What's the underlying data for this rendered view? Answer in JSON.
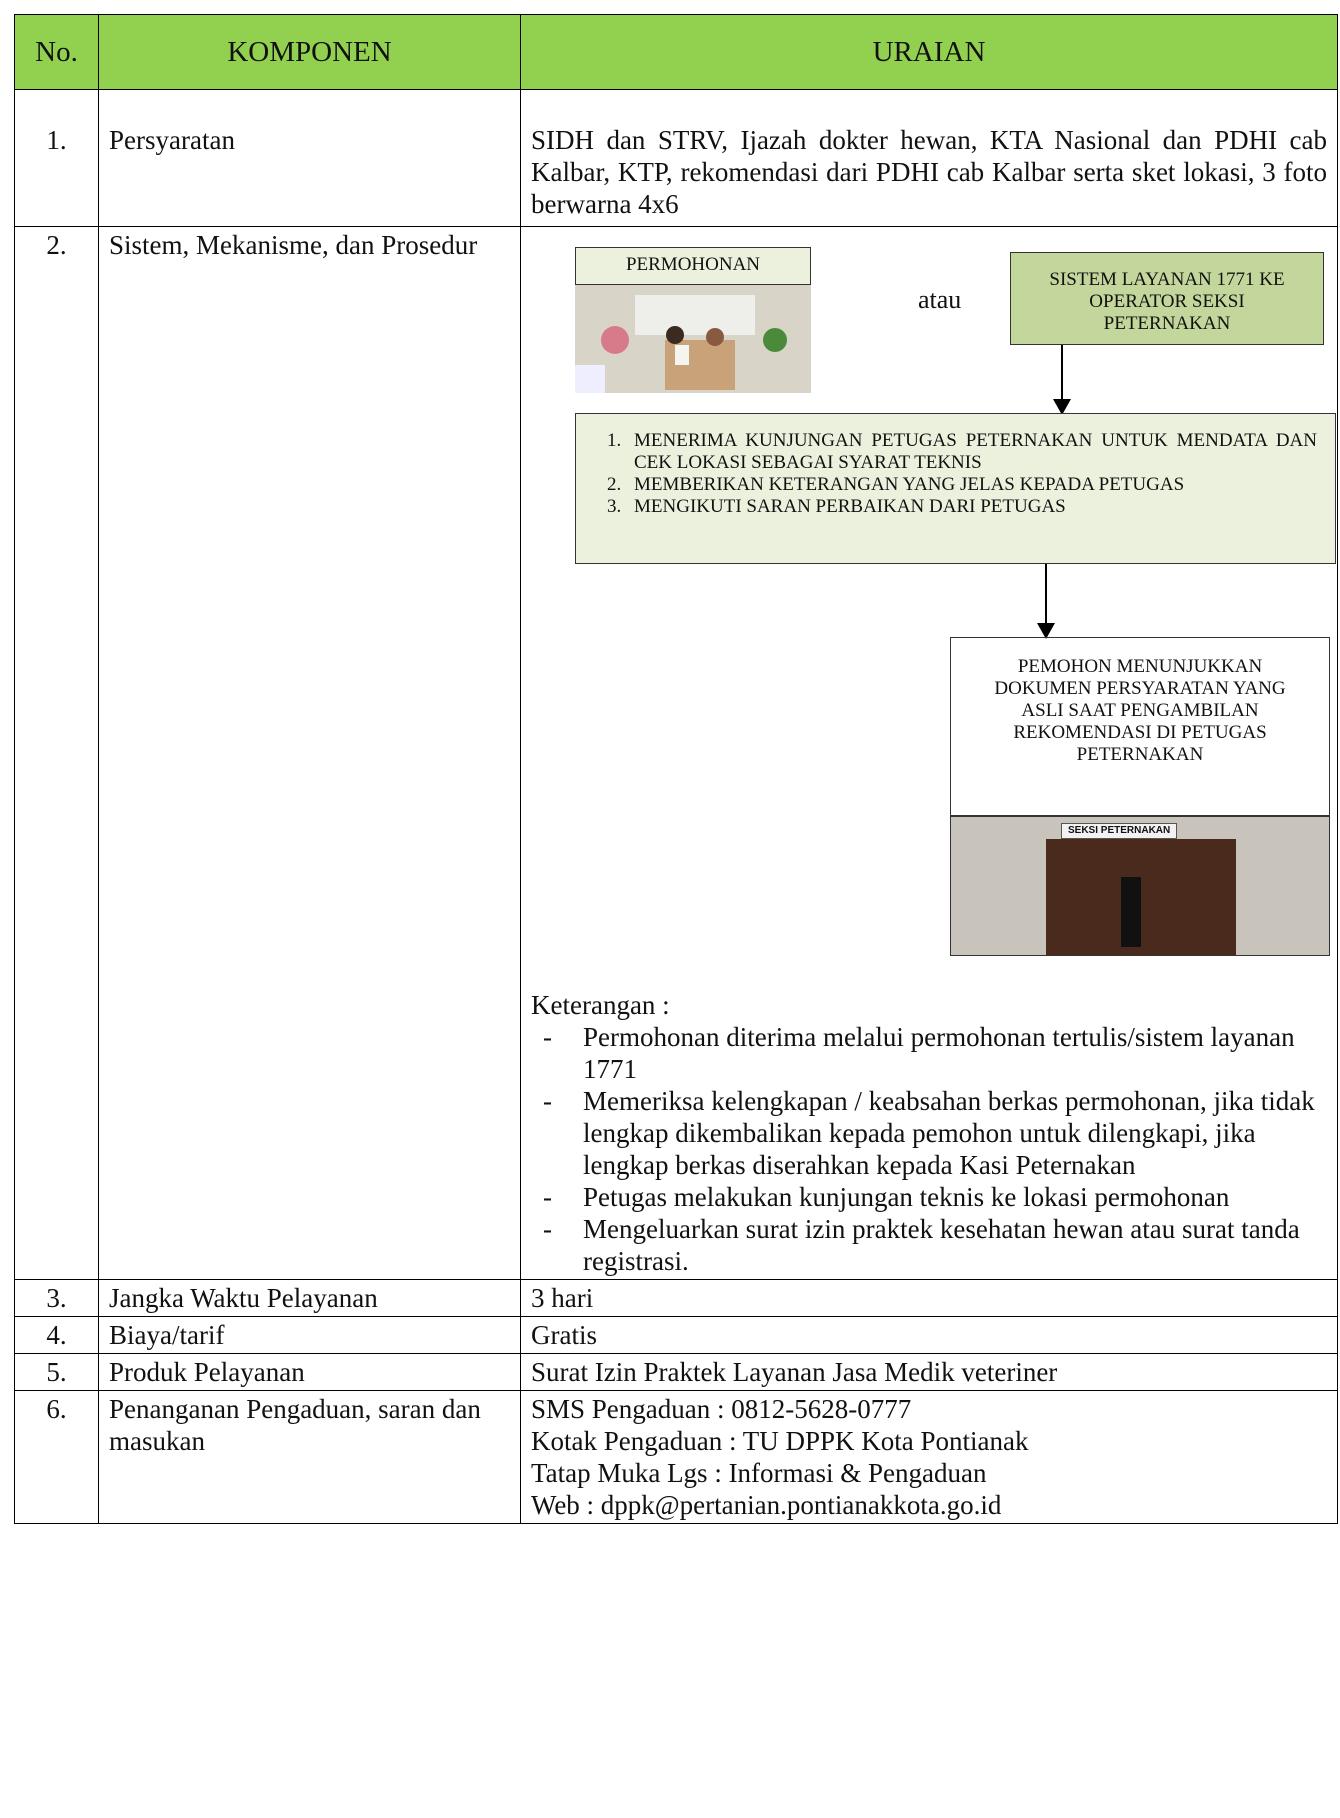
{
  "table": {
    "header": [
      "No.",
      "KOMPONEN",
      "URAIAN"
    ],
    "rows": [
      {
        "no": "1.",
        "komponen": "Persyaratan",
        "uraian": "SIDH dan STRV, Ijazah dokter hewan, KTA Nasional dan PDHI cab Kalbar, KTP, rekomendasi dari PDHI cab Kalbar serta sket lokasi, 3 foto berwarna 4x6"
      },
      {
        "no": "2.",
        "komponen": "Sistem, Mekanisme, dan Prosedur",
        "diagram": {
          "permohonan": "PERMOHONAN",
          "atau": "atau",
          "sistem": "SISTEM LAYANAN 1771 KE OPERATOR SEKSI PETERNAKAN",
          "steps": [
            "MENERIMA KUNJUNGAN PETUGAS PETERNAKAN UNTUK MENDATA DAN CEK LOKASI SEBAGAI SYARAT TEKNIS",
            "MEMBERIKAN KETERANGAN YANG JELAS KEPADA PETUGAS",
            "MENGIKUTI SARAN PERBAIKAN DARI PETUGAS"
          ],
          "pemohon": "PEMOHON MENUNJUKKAN DOKUMEN PERSYARATAN YANG ASLI SAAT PENGAMBILAN REKOMENDASI DI PETUGAS PETERNAKAN",
          "door_sign": "SEKSI PETERNAKAN"
        },
        "keterangan_title": "Keterangan :",
        "keterangan": [
          "Permohonan diterima melalui permohonan tertulis/sistem layanan 1771",
          "Memeriksa kelengkapan / keabsahan berkas permohonan, jika tidak lengkap dikembalikan kepada pemohon untuk dilengkapi, jika lengkap berkas diserahkan kepada Kasi Peternakan",
          "Petugas melakukan kunjungan teknis ke lokasi permohonan",
          "Mengeluarkan surat izin praktek  kesehatan hewan atau surat tanda registrasi."
        ]
      },
      {
        "no": "3.",
        "komponen": "Jangka Waktu Pelayanan",
        "uraian": "3 hari"
      },
      {
        "no": "4.",
        "komponen": "Biaya/tarif",
        "uraian": "Gratis"
      },
      {
        "no": "5.",
        "komponen": "Produk Pelayanan",
        "uraian": "Surat Izin Praktek Layanan Jasa Medik veteriner"
      },
      {
        "no": "6.",
        "komponen": "Penanganan Pengaduan, saran dan masukan",
        "uraian_lines": [
          "SMS Pengaduan  : 0812-5628-0777",
          "Kotak Pengaduan : TU DPPK Kota Pontianak",
          "Tatap Muka Lgs  : Informasi & Pengaduan",
          "Web  : dppk@pertanian.pontianakkota.go.id"
        ]
      }
    ]
  }
}
